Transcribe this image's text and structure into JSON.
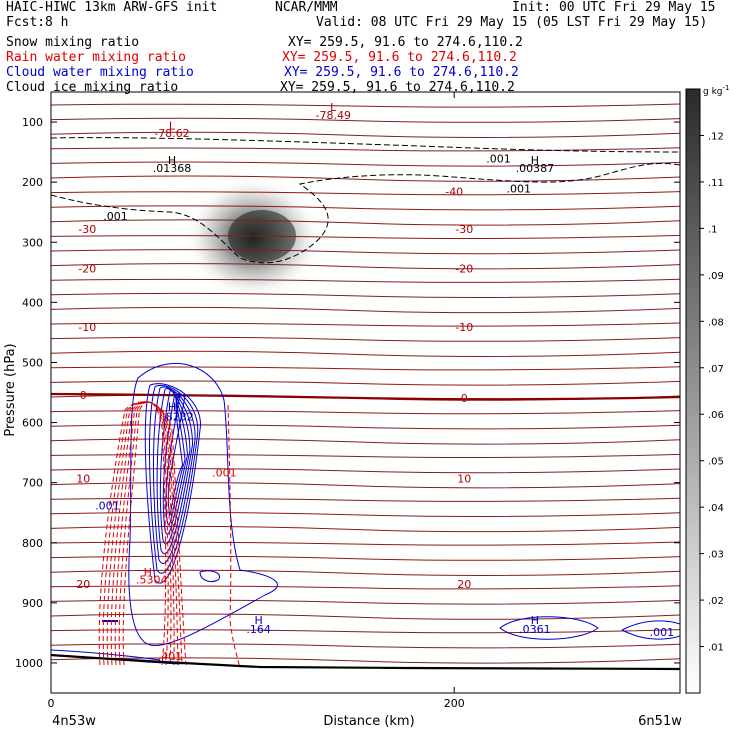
{
  "header": {
    "title_left": "HAIC-HIWC 13km ARW-GFS init",
    "org": "NCAR/MMM",
    "init": "Init: 00 UTC Fri 29 May 15",
    "fcst_label": "Fcst:",
    "fcst_value": "8 h",
    "valid": "Valid: 08 UTC Fri 29 May 15 (05 LST Fri 29 May 15)"
  },
  "fields": [
    {
      "name": "Snow mixing ratio",
      "xy": "XY= 259.5, 91.6 to 274.6,110.2",
      "color": "#000000"
    },
    {
      "name": "Rain water mixing ratio",
      "xy": "XY= 259.5, 91.6 to 274.6,110.2",
      "color": "#e00000"
    },
    {
      "name": "Cloud water mixing ratio",
      "xy": "XY= 259.5, 91.6 to 274.6,110.2",
      "color": "#0000d0"
    },
    {
      "name": "Cloud ice mixing ratio",
      "xy": "XY= 259.5, 91.6 to 274.6,110.2",
      "color": "#000000"
    }
  ],
  "chart_data": {
    "type": "heatmap",
    "xlabel": "Distance (km)",
    "ylabel": "Pressure (hPa)",
    "xlim": [
      0,
      312
    ],
    "ylim": [
      1050,
      50
    ],
    "xticks": [
      0,
      200
    ],
    "yticks": [
      100,
      200,
      300,
      400,
      500,
      600,
      700,
      800,
      900,
      1000
    ],
    "x_endpoints": [
      "4n53w",
      "6n51w"
    ],
    "colorbar": {
      "unit": "g kg",
      "unit_exp": "-1",
      "ticks": [
        ".01",
        ".02",
        ".03",
        ".04",
        ".05",
        ".06",
        ".07",
        ".08",
        ".09",
        ".1",
        ".11",
        ".12"
      ]
    },
    "isotherms": [
      {
        "label": "-30",
        "p": 272
      },
      {
        "label": "-20",
        "p": 335
      },
      {
        "label": "-10",
        "p": 430
      },
      {
        "label": "0",
        "p": 557
      },
      {
        "label": "10",
        "p": 688
      },
      {
        "label": "20",
        "p": 860
      }
    ],
    "annotations": [
      {
        "text": "L",
        "x": 60,
        "p": 112,
        "color": "#b00000"
      },
      {
        "text": "-78.62",
        "x": 60,
        "p": 125,
        "color": "#b00000"
      },
      {
        "text": "L",
        "x": 140,
        "p": 82,
        "color": "#b00000"
      },
      {
        "text": "-78.49",
        "x": 140,
        "p": 95,
        "color": "#b00000"
      },
      {
        "text": "-40",
        "x": 200,
        "p": 222,
        "color": "#b00000"
      },
      {
        "text": "-30",
        "x": 18,
        "p": 285,
        "color": "#b00000"
      },
      {
        "text": "-30",
        "x": 205,
        "p": 285,
        "color": "#b00000"
      },
      {
        "text": "-20",
        "x": 18,
        "p": 350,
        "color": "#b00000"
      },
      {
        "text": "-20",
        "x": 205,
        "p": 350,
        "color": "#b00000"
      },
      {
        "text": "-10",
        "x": 18,
        "p": 448,
        "color": "#b00000"
      },
      {
        "text": "-10",
        "x": 205,
        "p": 448,
        "color": "#b00000"
      },
      {
        "text": "0",
        "x": 16,
        "p": 561,
        "color": "#b00000"
      },
      {
        "text": "0",
        "x": 205,
        "p": 566,
        "color": "#b00000"
      },
      {
        "text": "10",
        "x": 16,
        "p": 700,
        "color": "#b00000"
      },
      {
        "text": "10",
        "x": 205,
        "p": 700,
        "color": "#b00000"
      },
      {
        "text": "20",
        "x": 16,
        "p": 875,
        "color": "#b00000"
      },
      {
        "text": "20",
        "x": 205,
        "p": 875,
        "color": "#b00000"
      },
      {
        "text": ".001",
        "x": 222,
        "p": 167,
        "color": "#000000"
      },
      {
        "text": ".001",
        "x": 232,
        "p": 217,
        "color": "#000000"
      },
      {
        "text": ".001",
        "x": 32,
        "p": 263,
        "color": "#000000"
      },
      {
        "text": "H",
        "x": 60,
        "p": 170,
        "color": "#000000"
      },
      {
        "text": ".01368",
        "x": 60,
        "p": 183,
        "color": "#000000"
      },
      {
        "text": "H",
        "x": 240,
        "p": 170,
        "color": "#000000"
      },
      {
        "text": ".00387",
        "x": 240,
        "p": 183,
        "color": "#000000"
      },
      {
        "text": "H",
        "x": 60,
        "p": 580,
        "color": "#0000c0"
      },
      {
        "text": ".8232",
        "x": 63,
        "p": 597,
        "color": "#0000c0"
      },
      {
        "text": ".001",
        "x": 28,
        "p": 745,
        "color": "#0000c0"
      },
      {
        "text": "H",
        "x": 103,
        "p": 935,
        "color": "#0000c0"
      },
      {
        "text": ".164",
        "x": 103,
        "p": 950,
        "color": "#0000c0"
      },
      {
        "text": "H",
        "x": 240,
        "p": 935,
        "color": "#0000c0"
      },
      {
        "text": ".0361",
        "x": 240,
        "p": 950,
        "color": "#0000c0"
      },
      {
        "text": ".001",
        "x": 303,
        "p": 955,
        "color": "#0000c0"
      },
      {
        "text": ".001",
        "x": 86,
        "p": 690,
        "color": "#e00000"
      },
      {
        "text": "H",
        "x": 48,
        "p": 855,
        "color": "#e00000"
      },
      {
        "text": ".5304",
        "x": 50,
        "p": 868,
        "color": "#e00000"
      },
      {
        "text": ".401",
        "x": 59,
        "p": 995,
        "color": "#e00000"
      }
    ]
  }
}
